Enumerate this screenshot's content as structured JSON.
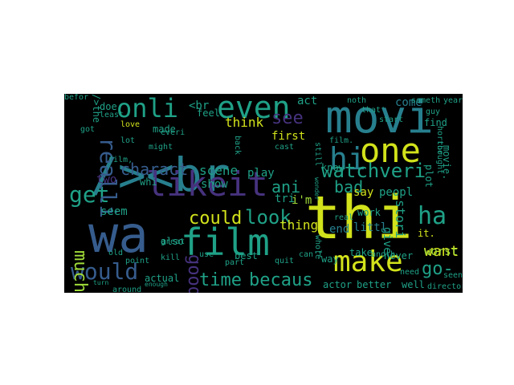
{
  "palette": {
    "yellow": "#d2e21b",
    "lime": "#a0da39",
    "green": "#4ac16d",
    "teal": "#1fa187",
    "cyan": "#277f8e",
    "blue": "#365c8d",
    "indigo": "#46327e",
    "purple": "#440154"
  },
  "words": [
    {
      "text": "thi"
    },
    {
      "text": "wa"
    },
    {
      "text": "movi"
    },
    {
      "text": "/><br"
    },
    {
      "text": "film"
    },
    {
      "text": "one"
    },
    {
      "text": "hi"
    },
    {
      "text": "likeit"
    },
    {
      "text": "even"
    },
    {
      "text": "onli"
    },
    {
      "text": "watchveri"
    },
    {
      "text": "make"
    },
    {
      "text": "ha"
    },
    {
      "text": "get"
    },
    {
      "text": "realli"
    },
    {
      "text": "would"
    },
    {
      "text": "much"
    },
    {
      "text": "good"
    },
    {
      "text": "time"
    },
    {
      "text": "becaus"
    },
    {
      "text": "could"
    },
    {
      "text": "look"
    },
    {
      "text": "see"
    },
    {
      "text": "charact"
    },
    {
      "text": "scene"
    },
    {
      "text": "go-"
    },
    {
      "text": "ani"
    },
    {
      "text": "bad"
    },
    {
      "text": "think"
    },
    {
      "text": "stori"
    },
    {
      "text": "say"
    },
    {
      "text": "peopl"
    },
    {
      "text": "want"
    },
    {
      "text": "thing"
    },
    {
      "text": "end"
    },
    {
      "text": "know"
    },
    {
      "text": "seem"
    },
    {
      "text": "first"
    },
    {
      "text": "made"
    },
    {
      "text": "act"
    },
    {
      "text": "plot"
    },
    {
      "text": "tri"
    },
    {
      "text": "i'm"
    },
    {
      "text": "<br"
    },
    {
      "text": "show"
    },
    {
      "text": "play"
    },
    {
      "text": "two"
    },
    {
      "text": "whi"
    },
    {
      "text": "way"
    },
    {
      "text": "give"
    },
    {
      "text": "littl"
    },
    {
      "text": "actor"
    },
    {
      "text": "better"
    },
    {
      "text": "well"
    },
    {
      "text": "seen"
    },
    {
      "text": "take"
    },
    {
      "text": "never"
    },
    {
      "text": "it."
    },
    {
      "text": "come"
    },
    {
      "text": "find"
    },
    {
      "text": "film."
    },
    {
      "text": "movie."
    },
    {
      "text": "also"
    },
    {
      "text": "actual"
    },
    {
      "text": "love"
    },
    {
      "text": "everi"
    },
    {
      "text": "lot"
    },
    {
      "text": "feel"
    },
    {
      "text": "use"
    },
    {
      "text": "/>the"
    },
    {
      "text": "doe"
    },
    {
      "text": "least"
    },
    {
      "text": "guy"
    },
    {
      "text": "start"
    },
    {
      "text": "that'"
    },
    {
      "text": "year"
    },
    {
      "text": "someth"
    },
    {
      "text": "noth"
    },
    {
      "text": "horror"
    },
    {
      "text": "thought"
    },
    {
      "text": "worst"
    },
    {
      "text": "work"
    },
    {
      "text": "anoth"
    },
    {
      "text": "need"
    },
    {
      "text": "director"
    },
    {
      "text": "around"
    },
    {
      "text": "kill"
    },
    {
      "text": "great"
    },
    {
      "text": "can't"
    },
    {
      "text": "real"
    },
    {
      "text": "cast"
    },
    {
      "text": "part"
    },
    {
      "text": "best"
    },
    {
      "text": "old"
    },
    {
      "text": "film,"
    },
    {
      "text": "got"
    },
    {
      "text": "might"
    },
    {
      "text": "back"
    },
    {
      "text": "still"
    },
    {
      "text": "quit"
    },
    {
      "text": "point"
    },
    {
      "text": "turn"
    },
    {
      "text": "enough"
    },
    {
      "text": "wonder"
    },
    {
      "text": "whole"
    },
    {
      "text": "befor"
    }
  ]
}
